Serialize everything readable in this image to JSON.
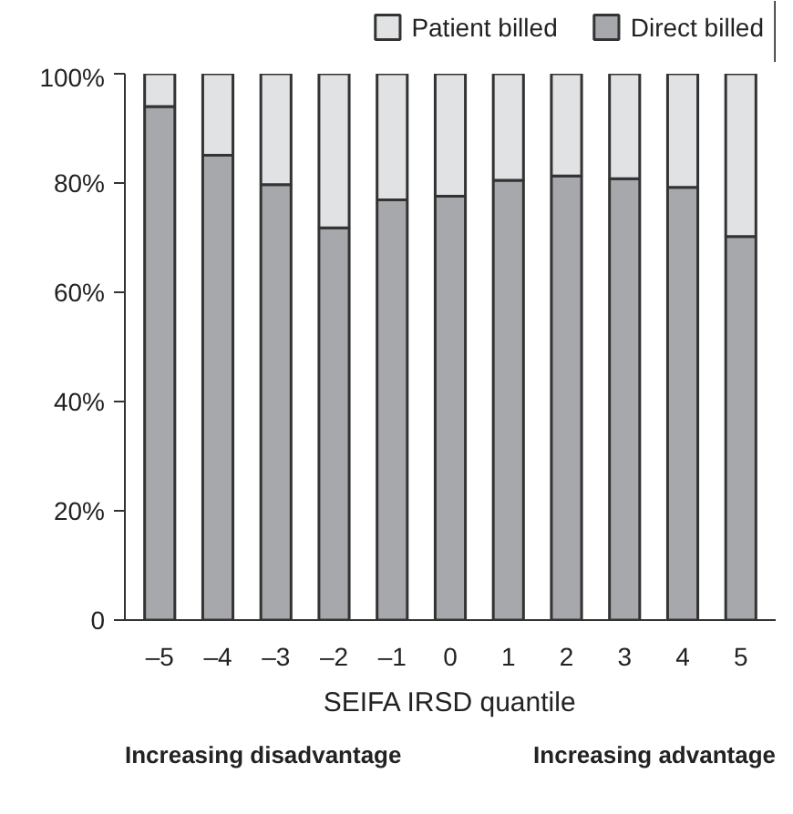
{
  "chart_data": {
    "type": "bar",
    "stacked": true,
    "categories": [
      "–5",
      "–4",
      "–3",
      "–2",
      "–1",
      "0",
      "1",
      "2",
      "3",
      "4",
      "5"
    ],
    "series": [
      {
        "name": "Direct billed",
        "color": "#a7a8ab",
        "values": [
          94.0,
          85.1,
          79.7,
          71.8,
          76.9,
          77.6,
          80.5,
          81.3,
          80.8,
          79.2,
          70.2
        ]
      },
      {
        "name": "Patient billed",
        "color": "#e1e2e4",
        "values": [
          6.0,
          14.9,
          20.3,
          28.2,
          23.1,
          22.4,
          19.5,
          18.7,
          19.2,
          20.8,
          29.8
        ]
      }
    ],
    "xlabel": "SEIFA IRSD quantile",
    "ylim": [
      0,
      100
    ],
    "yticks": [
      {
        "value": 0,
        "label": "0"
      },
      {
        "value": 20,
        "label": "20%"
      },
      {
        "value": 40,
        "label": "40%"
      },
      {
        "value": 60,
        "label": "60%"
      },
      {
        "value": 80,
        "label": "80%"
      },
      {
        "value": 100,
        "label": "100%"
      }
    ],
    "grid": false,
    "legend": "top right",
    "annotations": [
      "Increasing disadvantage",
      "Increasing advantage"
    ]
  }
}
